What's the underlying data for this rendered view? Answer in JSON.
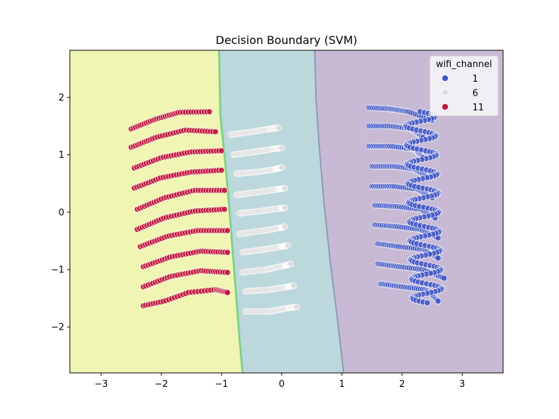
{
  "chart_data": {
    "type": "scatter",
    "title": "Decision Boundary (SVM)",
    "xlabel": "",
    "ylabel": "",
    "xlim": [
      -3.52,
      3.68
    ],
    "ylim": [
      -2.8,
      2.82
    ],
    "xticks": [
      -3,
      -2,
      -1,
      0,
      1,
      2,
      3
    ],
    "yticks": [
      -2,
      -1,
      0,
      1,
      2
    ],
    "xtick_labels": [
      "−3",
      "−2",
      "−1",
      "0",
      "1",
      "2",
      "3"
    ],
    "ytick_labels": [
      "−2",
      "−1",
      "0",
      "1",
      "2"
    ],
    "grid": false,
    "legend": {
      "title": "wifi_channel",
      "placement": "top-right",
      "entries": [
        {
          "label": "1",
          "color": "#4257c4"
        },
        {
          "label": "6",
          "color": "#dddddd"
        },
        {
          "label": "11",
          "color": "#c0163a"
        }
      ]
    },
    "regions": [
      {
        "class": "11",
        "color": "#f0f5b4"
      },
      {
        "class": "6",
        "color": "#bcd8dd"
      },
      {
        "class": "1",
        "color": "#c8bad4"
      }
    ],
    "boundaries": [
      {
        "between": [
          "11",
          "6"
        ],
        "points": [
          [
            -1.04,
            2.82
          ],
          [
            -1.02,
            1.7
          ],
          [
            -0.95,
            1.0
          ],
          [
            -0.88,
            0.2
          ],
          [
            -0.82,
            -0.6
          ],
          [
            -0.76,
            -1.4
          ],
          [
            -0.7,
            -2.2
          ],
          [
            -0.65,
            -2.8
          ]
        ]
      },
      {
        "between": [
          "6",
          "1"
        ],
        "points": [
          [
            0.55,
            2.82
          ],
          [
            0.57,
            2.0
          ],
          [
            0.62,
            1.2
          ],
          [
            0.7,
            0.2
          ],
          [
            0.8,
            -0.8
          ],
          [
            0.92,
            -1.8
          ],
          [
            1.03,
            -2.8
          ]
        ]
      }
    ],
    "series": [
      {
        "name": "11",
        "color": "#c0163a",
        "arcs": [
          {
            "x": [
              -2.5,
              -2.1,
              -1.7,
              -1.2
            ],
            "y": [
              1.45,
              1.62,
              1.74,
              1.75
            ]
          },
          {
            "x": [
              -2.5,
              -2.1,
              -1.6,
              -1.1
            ],
            "y": [
              1.13,
              1.3,
              1.43,
              1.4
            ]
          },
          {
            "x": [
              -2.45,
              -2.0,
              -1.5,
              -1.0
            ],
            "y": [
              0.77,
              0.95,
              1.05,
              1.07
            ]
          },
          {
            "x": [
              -2.45,
              -2.0,
              -1.5,
              -1.0
            ],
            "y": [
              0.42,
              0.6,
              0.7,
              0.73
            ]
          },
          {
            "x": [
              -2.4,
              -1.95,
              -1.45,
              -0.95
            ],
            "y": [
              0.05,
              0.25,
              0.38,
              0.38
            ]
          },
          {
            "x": [
              -2.4,
              -1.95,
              -1.45,
              -0.95
            ],
            "y": [
              -0.3,
              -0.1,
              0.02,
              0.05
            ]
          },
          {
            "x": [
              -2.35,
              -1.9,
              -1.4,
              -0.9
            ],
            "y": [
              -0.6,
              -0.42,
              -0.32,
              -0.32
            ]
          },
          {
            "x": [
              -2.3,
              -1.85,
              -1.35,
              -0.9
            ],
            "y": [
              -0.95,
              -0.78,
              -0.68,
              -0.7
            ]
          },
          {
            "x": [
              -2.3,
              -1.85,
              -1.35,
              -0.9
            ],
            "y": [
              -1.3,
              -1.12,
              -1.02,
              -1.05
            ]
          },
          {
            "x": [
              -2.3,
              -1.95,
              -1.55,
              -1.1,
              -0.9
            ],
            "y": [
              -1.63,
              -1.55,
              -1.4,
              -1.35,
              -1.4
            ]
          }
        ]
      },
      {
        "name": "6",
        "color": "#dddddd",
        "arcs": [
          {
            "x": [
              -0.85,
              -0.5,
              -0.2,
              -0.05
            ],
            "y": [
              1.35,
              1.4,
              1.45,
              1.47
            ]
          },
          {
            "x": [
              -0.8,
              -0.45,
              -0.15,
              0.0
            ],
            "y": [
              1.0,
              1.05,
              1.1,
              1.12
            ]
          },
          {
            "x": [
              -0.75,
              -0.4,
              -0.1,
              0.0
            ],
            "y": [
              0.67,
              0.7,
              0.75,
              0.78
            ]
          },
          {
            "x": [
              -0.75,
              -0.4,
              -0.05,
              0.05
            ],
            "y": [
              0.3,
              0.35,
              0.4,
              0.42
            ]
          },
          {
            "x": [
              -0.7,
              -0.35,
              0.0,
              0.05
            ],
            "y": [
              -0.02,
              0.02,
              0.07,
              0.08
            ]
          },
          {
            "x": [
              -0.7,
              -0.3,
              0.0,
              0.05
            ],
            "y": [
              -0.38,
              -0.32,
              -0.27,
              -0.25
            ]
          },
          {
            "x": [
              -0.65,
              -0.3,
              0.0,
              0.1
            ],
            "y": [
              -0.7,
              -0.65,
              -0.6,
              -0.58
            ]
          },
          {
            "x": [
              -0.65,
              -0.25,
              0.05,
              0.15
            ],
            "y": [
              -1.05,
              -1.0,
              -0.93,
              -0.9
            ]
          },
          {
            "x": [
              -0.6,
              -0.2,
              0.1,
              0.2
            ],
            "y": [
              -1.38,
              -1.35,
              -1.3,
              -1.28
            ]
          },
          {
            "x": [
              -0.6,
              -0.2,
              0.1,
              0.25
            ],
            "y": [
              -1.73,
              -1.73,
              -1.67,
              -1.65
            ]
          }
        ]
      },
      {
        "name": "1",
        "color": "#4257c4",
        "arcs": [
          {
            "x": [
              1.45,
              1.8,
              2.1,
              2.5
            ],
            "y": [
              1.82,
              1.8,
              1.75,
              1.6
            ]
          },
          {
            "x": [
              1.45,
              1.8,
              2.15,
              2.35
            ],
            "y": [
              1.5,
              1.5,
              1.45,
              1.3
            ]
          },
          {
            "x": [
              1.45,
              1.8,
              2.2,
              2.35
            ],
            "y": [
              1.15,
              1.15,
              1.1,
              0.95
            ]
          },
          {
            "x": [
              1.5,
              1.85,
              2.2,
              2.45
            ],
            "y": [
              0.8,
              0.8,
              0.75,
              0.6
            ]
          },
          {
            "x": [
              1.5,
              1.85,
              2.25,
              2.5
            ],
            "y": [
              0.45,
              0.45,
              0.4,
              0.25
            ]
          },
          {
            "x": [
              1.55,
              1.9,
              2.3,
              2.55
            ],
            "y": [
              0.12,
              0.1,
              0.05,
              -0.1
            ]
          },
          {
            "x": [
              1.55,
              1.9,
              2.3,
              2.6
            ],
            "y": [
              -0.22,
              -0.25,
              -0.3,
              -0.45
            ]
          },
          {
            "x": [
              1.6,
              1.95,
              2.35,
              2.6
            ],
            "y": [
              -0.55,
              -0.6,
              -0.65,
              -0.8
            ]
          },
          {
            "x": [
              1.6,
              1.95,
              2.35,
              2.7
            ],
            "y": [
              -0.9,
              -0.95,
              -1.0,
              -1.15
            ]
          },
          {
            "x": [
              1.65,
              2.0,
              2.4,
              2.6
            ],
            "y": [
              -1.25,
              -1.3,
              -1.35,
              -1.55
            ]
          }
        ],
        "wave": {
          "y_from": 1.75,
          "y_to": -1.58,
          "x_left": 2.05,
          "x_right": 2.55,
          "cycles": 10
        }
      }
    ]
  }
}
